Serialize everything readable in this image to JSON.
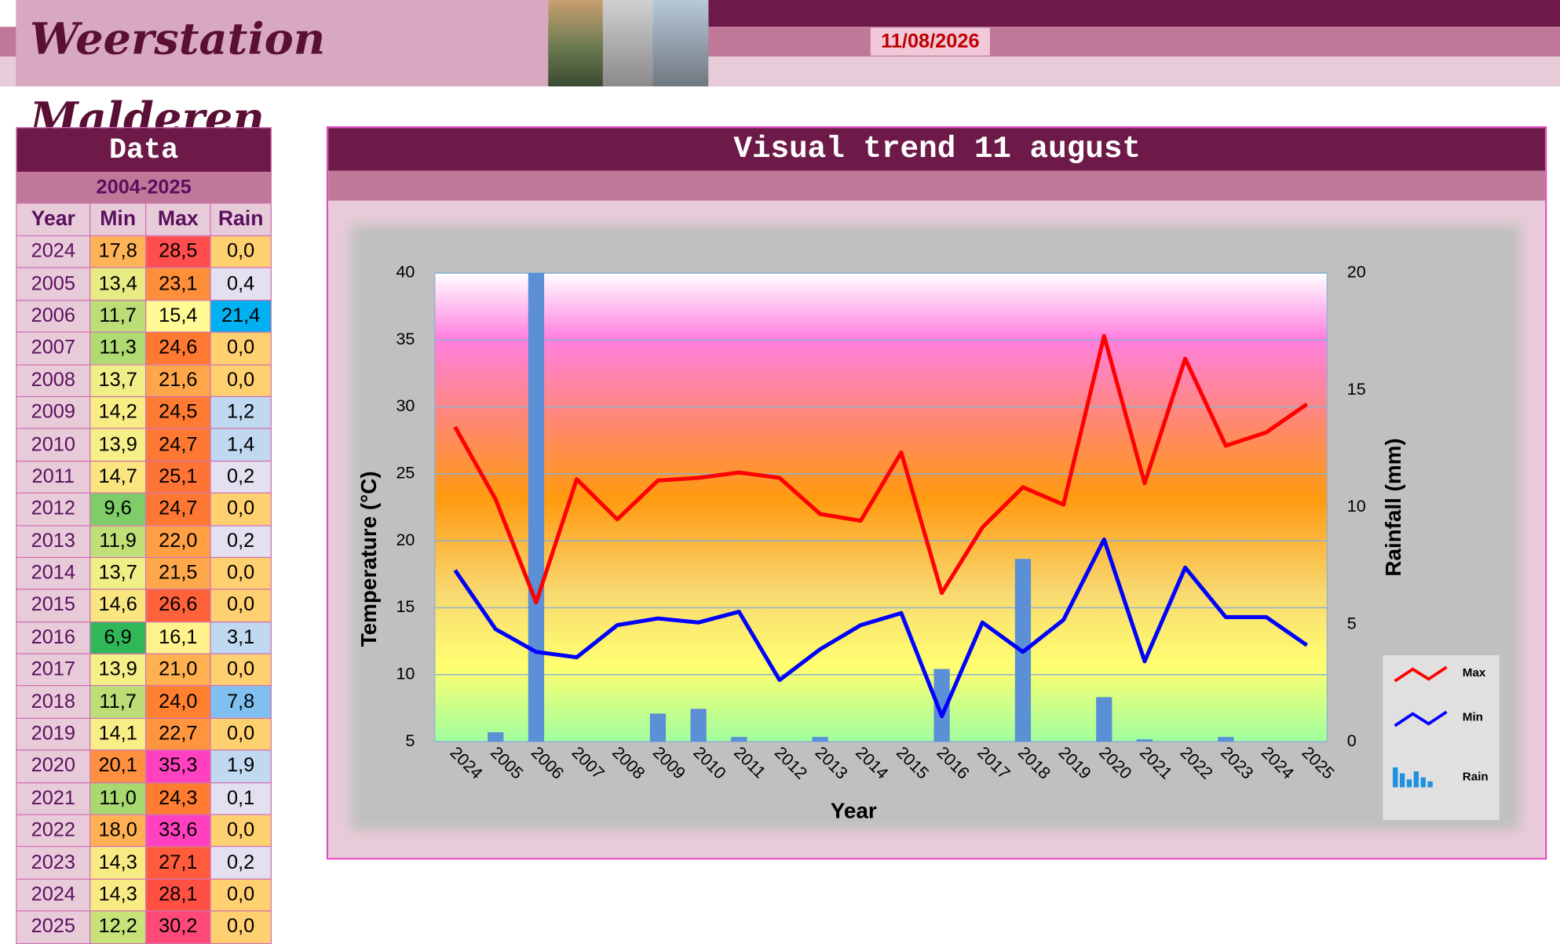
{
  "header": {
    "title": "Weerstation Malderen",
    "date": "11/08/2026"
  },
  "table": {
    "title": "Data",
    "subtitle": "2004-2025",
    "columns": [
      "Year",
      "Min",
      "Max",
      "Rain"
    ],
    "rows": [
      [
        "2024",
        "17,8",
        "28,5",
        "0,0"
      ],
      [
        "2005",
        "13,4",
        "23,1",
        "0,4"
      ],
      [
        "2006",
        "11,7",
        "15,4",
        "21,4"
      ],
      [
        "2007",
        "11,3",
        "24,6",
        "0,0"
      ],
      [
        "2008",
        "13,7",
        "21,6",
        "0,0"
      ],
      [
        "2009",
        "14,2",
        "24,5",
        "1,2"
      ],
      [
        "2010",
        "13,9",
        "24,7",
        "1,4"
      ],
      [
        "2011",
        "14,7",
        "25,1",
        "0,2"
      ],
      [
        "2012",
        "9,6",
        "24,7",
        "0,0"
      ],
      [
        "2013",
        "11,9",
        "22,0",
        "0,2"
      ],
      [
        "2014",
        "13,7",
        "21,5",
        "0,0"
      ],
      [
        "2015",
        "14,6",
        "26,6",
        "0,0"
      ],
      [
        "2016",
        "6,9",
        "16,1",
        "3,1"
      ],
      [
        "2017",
        "13,9",
        "21,0",
        "0,0"
      ],
      [
        "2018",
        "11,7",
        "24,0",
        "7,8"
      ],
      [
        "2019",
        "14,1",
        "22,7",
        "0,0"
      ],
      [
        "2020",
        "20,1",
        "35,3",
        "1,9"
      ],
      [
        "2021",
        "11,0",
        "24,3",
        "0,1"
      ],
      [
        "2022",
        "18,0",
        "33,6",
        "0,0"
      ],
      [
        "2023",
        "14,3",
        "27,1",
        "0,2"
      ],
      [
        "2024",
        "14,3",
        "28,1",
        "0,0"
      ],
      [
        "2025",
        "12,2",
        "30,2",
        "0,0"
      ]
    ]
  },
  "chart_data": {
    "type": "line",
    "title": "Visual trend 11 august",
    "x_label": "Year",
    "y_label": "Temperature (°C)",
    "y2_label": "Rainfall (mm)",
    "categories": [
      "2024",
      "2005",
      "2006",
      "2007",
      "2008",
      "2009",
      "2010",
      "2011",
      "2012",
      "2013",
      "2014",
      "2015",
      "2016",
      "2017",
      "2018",
      "2019",
      "2020",
      "2021",
      "2022",
      "2023",
      "2024",
      "2025"
    ],
    "series": [
      {
        "name": "Max",
        "color": "#ff0000",
        "values": [
          28.5,
          23.1,
          15.4,
          24.6,
          21.6,
          24.5,
          24.7,
          25.1,
          24.7,
          22.0,
          21.5,
          26.6,
          16.1,
          21.0,
          24.0,
          22.7,
          35.3,
          24.3,
          33.6,
          27.1,
          28.1,
          30.2
        ]
      },
      {
        "name": "Min",
        "color": "#0000ff",
        "values": [
          17.8,
          13.4,
          11.7,
          11.3,
          13.7,
          14.2,
          13.9,
          14.7,
          9.6,
          11.9,
          13.7,
          14.6,
          6.9,
          13.9,
          11.7,
          14.1,
          20.1,
          11.0,
          18.0,
          14.3,
          14.3,
          12.2
        ]
      },
      {
        "name": "Rain",
        "color": "#5b8fd6",
        "type": "bar",
        "axis": "y2",
        "values": [
          0.0,
          0.4,
          21.4,
          0.0,
          0.0,
          1.2,
          1.4,
          0.2,
          0.0,
          0.2,
          0.0,
          0.0,
          3.1,
          0.0,
          7.8,
          0.0,
          1.9,
          0.1,
          0.0,
          0.2,
          0.0,
          0.0
        ]
      }
    ],
    "ylim": [
      5,
      40
    ],
    "yticks": [
      5,
      10,
      15,
      20,
      25,
      30,
      35,
      40
    ],
    "y2lim": [
      0,
      20
    ],
    "y2ticks": [
      0,
      5,
      10,
      15,
      20
    ],
    "grid": true,
    "legend": "right"
  }
}
